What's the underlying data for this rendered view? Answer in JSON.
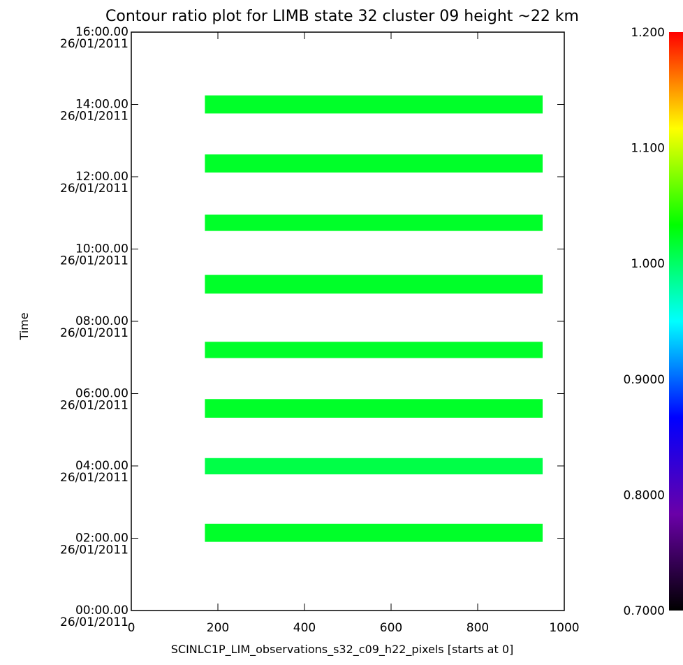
{
  "chart_data": {
    "type": "heatmap",
    "title": "Contour ratio plot for LIMB state 32 cluster 09 height ~22 km",
    "xlabel": "SCINLC1P_LIM_observations_s32_c09_h22_pixels [starts at 0]",
    "ylabel": "Time",
    "xlim": [
      0,
      1000
    ],
    "ylim": [
      "00:00.00 26/01/2011",
      "16:00.00 26/01/2011"
    ],
    "x_ticks": [
      {
        "value": 0,
        "label": "0"
      },
      {
        "value": 200,
        "label": "200"
      },
      {
        "value": 400,
        "label": "400"
      },
      {
        "value": 600,
        "label": "600"
      },
      {
        "value": 800,
        "label": "800"
      },
      {
        "value": 1000,
        "label": "1000"
      }
    ],
    "y_ticks": [
      {
        "hours": 0,
        "time": "00:00.00",
        "date": "26/01/2011"
      },
      {
        "hours": 2,
        "time": "02:00.00",
        "date": "26/01/2011"
      },
      {
        "hours": 4,
        "time": "04:00.00",
        "date": "26/01/2011"
      },
      {
        "hours": 6,
        "time": "06:00.00",
        "date": "26/01/2011"
      },
      {
        "hours": 8,
        "time": "08:00.00",
        "date": "26/01/2011"
      },
      {
        "hours": 10,
        "time": "10:00.00",
        "date": "26/01/2011"
      },
      {
        "hours": 12,
        "time": "12:00.00",
        "date": "26/01/2011"
      },
      {
        "hours": 14,
        "time": "14:00.00",
        "date": "26/01/2011"
      },
      {
        "hours": 16,
        "time": "16:00.00",
        "date": "26/01/2011"
      }
    ],
    "bands": [
      {
        "x_start": 170,
        "x_end": 950,
        "time_start": "01:54",
        "time_end": "02:24",
        "ratio": 1.02
      },
      {
        "x_start": 170,
        "x_end": 950,
        "time_start": "03:46",
        "time_end": "04:13",
        "ratio": 1.01
      },
      {
        "x_start": 170,
        "x_end": 950,
        "time_start": "05:20",
        "time_end": "05:51",
        "ratio": 1.02
      },
      {
        "x_start": 170,
        "x_end": 950,
        "time_start": "06:59",
        "time_end": "07:26",
        "ratio": 1.02
      },
      {
        "x_start": 170,
        "x_end": 950,
        "time_start": "08:46",
        "time_end": "09:17",
        "ratio": 1.02
      },
      {
        "x_start": 170,
        "x_end": 950,
        "time_start": "10:30",
        "time_end": "10:57",
        "ratio": 1.02
      },
      {
        "x_start": 170,
        "x_end": 950,
        "time_start": "12:07",
        "time_end": "12:37",
        "ratio": 1.02
      },
      {
        "x_start": 170,
        "x_end": 950,
        "time_start": "13:45",
        "time_end": "14:15",
        "ratio": 1.02
      }
    ],
    "colorbar": {
      "range": [
        0.7,
        1.2
      ],
      "ticks": [
        {
          "value": 0.7,
          "label": "0.7000"
        },
        {
          "value": 0.8,
          "label": "0.8000"
        },
        {
          "value": 0.9,
          "label": "0.9000"
        },
        {
          "value": 1.0,
          "label": "1.000"
        },
        {
          "value": 1.1,
          "label": "1.100"
        },
        {
          "value": 1.2,
          "label": "1.200"
        }
      ],
      "colors": [
        "#000000",
        "#6a00a8",
        "#0000ff",
        "#00ffff",
        "#00ff00",
        "#ffff00",
        "#ff0000"
      ]
    },
    "grid": false
  }
}
